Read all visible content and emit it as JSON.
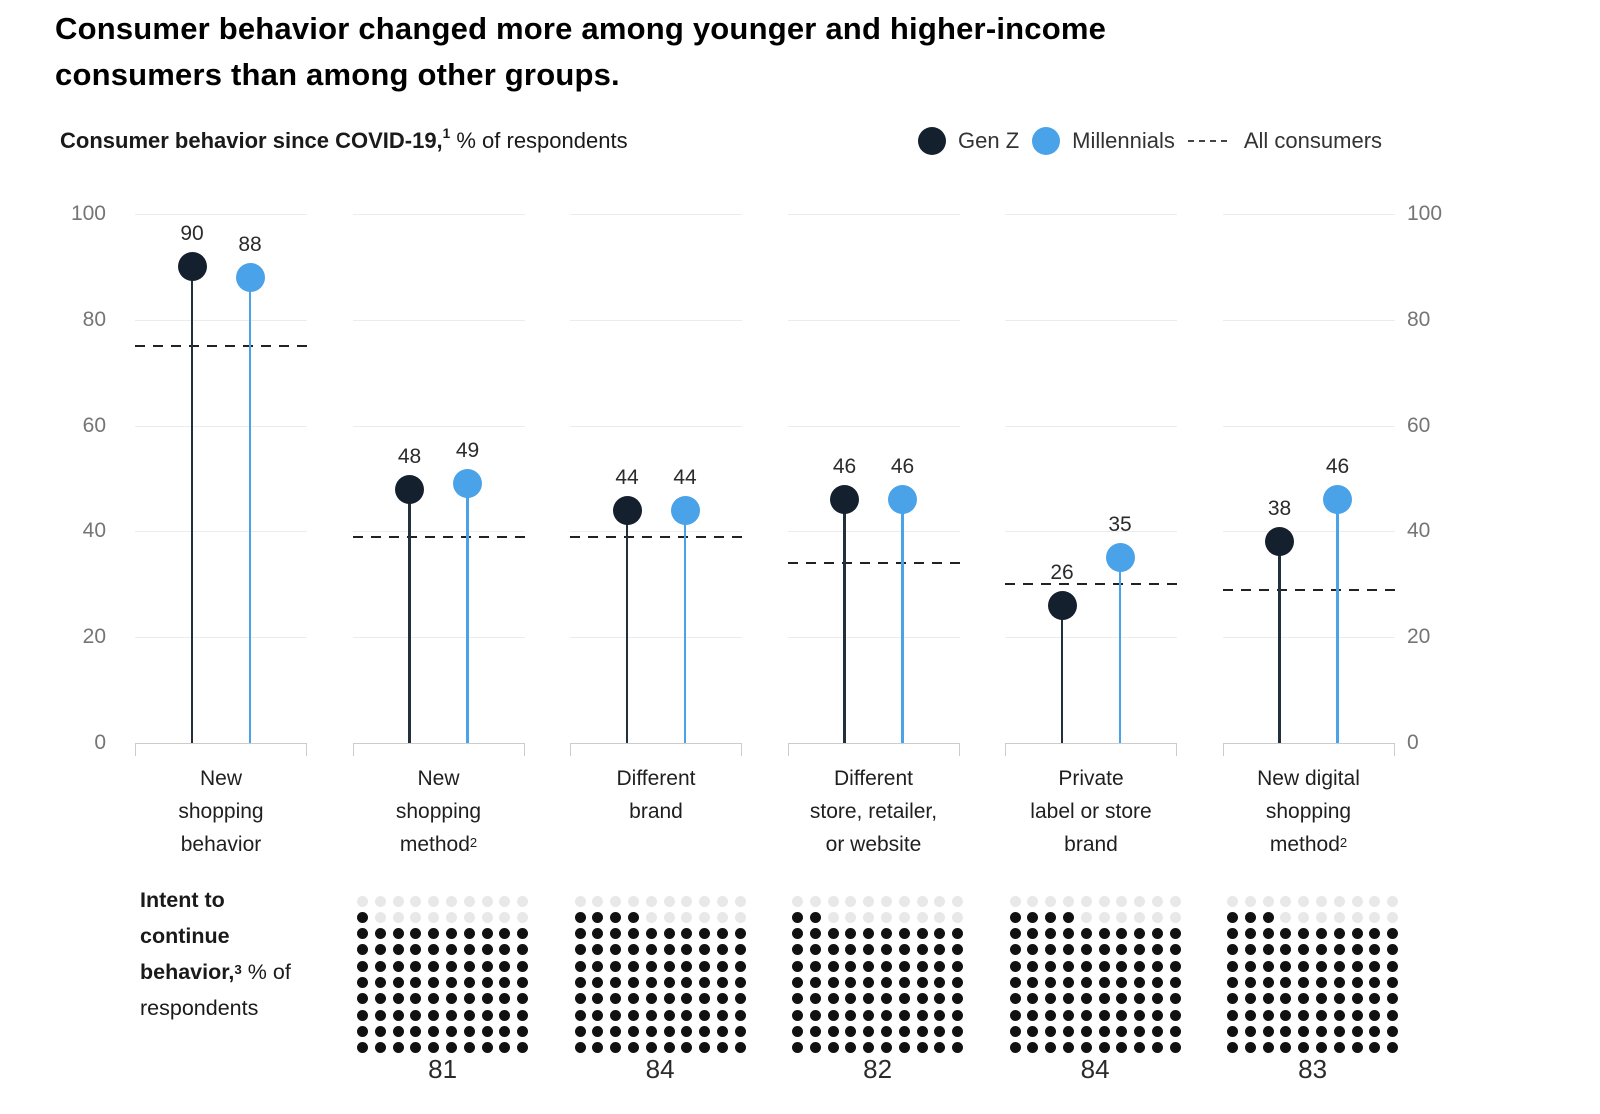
{
  "title": {
    "lines": [
      "Consumer behavior changed more among younger and higher-income",
      "consumers than among other groups."
    ]
  },
  "subtitle": {
    "bold": "Consumer behavior since COVID-19,",
    "footnote": "1",
    "rest": " % of respondents"
  },
  "legend": {
    "items": [
      {
        "label": "Gen Z",
        "swatch": "dot",
        "color": "#15202E"
      },
      {
        "label": "Millennials",
        "swatch": "dot",
        "color": "#4AA2E9"
      },
      {
        "label": "All consumers",
        "swatch": "dashed",
        "color": "#444444"
      }
    ]
  },
  "colors": {
    "gen_z": "#15202E",
    "gen_z_stem": "#222F3D",
    "millennials": "#4AA2E9",
    "all_consumers_dash": "#222222",
    "waffle_filled": "#111111",
    "waffle_empty": "#E8E8E8"
  },
  "y_axis": {
    "ticks": [
      100,
      80,
      60,
      40,
      20,
      0
    ]
  },
  "chart_data": {
    "type": "lollipop",
    "title": "Consumer behavior since COVID-19, % of respondents",
    "ylim": [
      0,
      100
    ],
    "grid": "on",
    "legend_position": "top-right",
    "categories": [
      {
        "label": "New shopping behavior",
        "lines": [
          "New",
          "shopping",
          "behavior"
        ],
        "sup": ""
      },
      {
        "label": "New shopping method",
        "lines": [
          "New",
          "shopping",
          "method"
        ],
        "sup": "2"
      },
      {
        "label": "Different brand",
        "lines": [
          "Different",
          "brand"
        ],
        "sup": ""
      },
      {
        "label": "Different store, retailer, or website",
        "lines": [
          "Different",
          "store, retailer,",
          "or website"
        ],
        "sup": ""
      },
      {
        "label": "Private label or store brand",
        "lines": [
          "Private",
          "label or store",
          "brand"
        ],
        "sup": ""
      },
      {
        "label": "New digital shopping method",
        "lines": [
          "New digital",
          "shopping",
          "method"
        ],
        "sup": "2"
      }
    ],
    "series": [
      {
        "name": "Gen Z",
        "values": [
          90,
          48,
          44,
          46,
          26,
          38
        ]
      },
      {
        "name": "Millennials",
        "values": [
          88,
          49,
          44,
          46,
          35,
          46
        ]
      },
      {
        "name": "All consumers",
        "style": "dashed",
        "values": [
          75,
          39,
          39,
          34,
          30,
          29
        ]
      }
    ],
    "waffle": {
      "type": "waffle",
      "grid": [
        10,
        10
      ],
      "label": {
        "bold": "Intent to continue behavior,",
        "footnote": "3",
        "rest": " % of respondents"
      },
      "values": [
        null,
        81,
        84,
        82,
        84,
        83
      ]
    }
  }
}
